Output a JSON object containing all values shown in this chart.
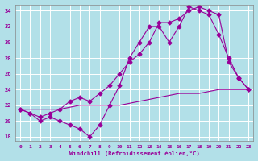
{
  "xlabel": "Windchill (Refroidissement éolien,°C)",
  "background_color": "#b2e0e8",
  "grid_color": "#ffffff",
  "line_color": "#990099",
  "xlim": [
    -0.5,
    23.5
  ],
  "ylim": [
    17.5,
    34.8
  ],
  "yticks": [
    18,
    20,
    22,
    24,
    26,
    28,
    30,
    32,
    34
  ],
  "xticks": [
    0,
    1,
    2,
    3,
    4,
    5,
    6,
    7,
    8,
    9,
    10,
    11,
    12,
    13,
    14,
    15,
    16,
    17,
    18,
    19,
    20,
    21,
    22,
    23
  ],
  "line1_x": [
    0,
    1,
    2,
    3,
    4,
    5,
    6,
    7,
    8,
    9,
    10,
    11,
    12,
    13,
    14,
    15,
    16,
    17,
    18,
    19,
    20,
    21,
    22,
    23
  ],
  "line1_y": [
    21.5,
    21.0,
    20.0,
    20.5,
    20.0,
    19.5,
    19.0,
    18.0,
    19.5,
    22.0,
    24.5,
    28.0,
    30.0,
    32.0,
    32.0,
    30.0,
    32.0,
    34.5,
    34.0,
    33.5,
    31.0,
    28.0,
    25.5,
    24.0
  ],
  "line2_x": [
    0,
    1,
    2,
    3,
    4,
    5,
    6,
    7,
    8,
    9,
    10,
    11,
    12,
    13,
    14,
    15,
    16,
    17,
    18,
    19,
    20,
    21,
    22,
    23
  ],
  "line2_y": [
    21.5,
    21.0,
    20.5,
    21.0,
    21.5,
    22.5,
    23.0,
    22.5,
    23.5,
    24.5,
    26.0,
    27.5,
    28.5,
    30.0,
    32.5,
    32.5,
    33.0,
    34.0,
    34.5,
    34.0,
    33.5,
    27.5,
    25.5,
    24.0
  ],
  "line3_x": [
    0,
    2,
    4,
    6,
    8,
    10,
    12,
    14,
    16,
    18,
    20,
    22,
    23
  ],
  "line3_y": [
    21.5,
    21.5,
    21.5,
    22.0,
    22.0,
    22.0,
    22.5,
    23.0,
    23.5,
    23.5,
    24.0,
    24.0,
    24.0
  ]
}
